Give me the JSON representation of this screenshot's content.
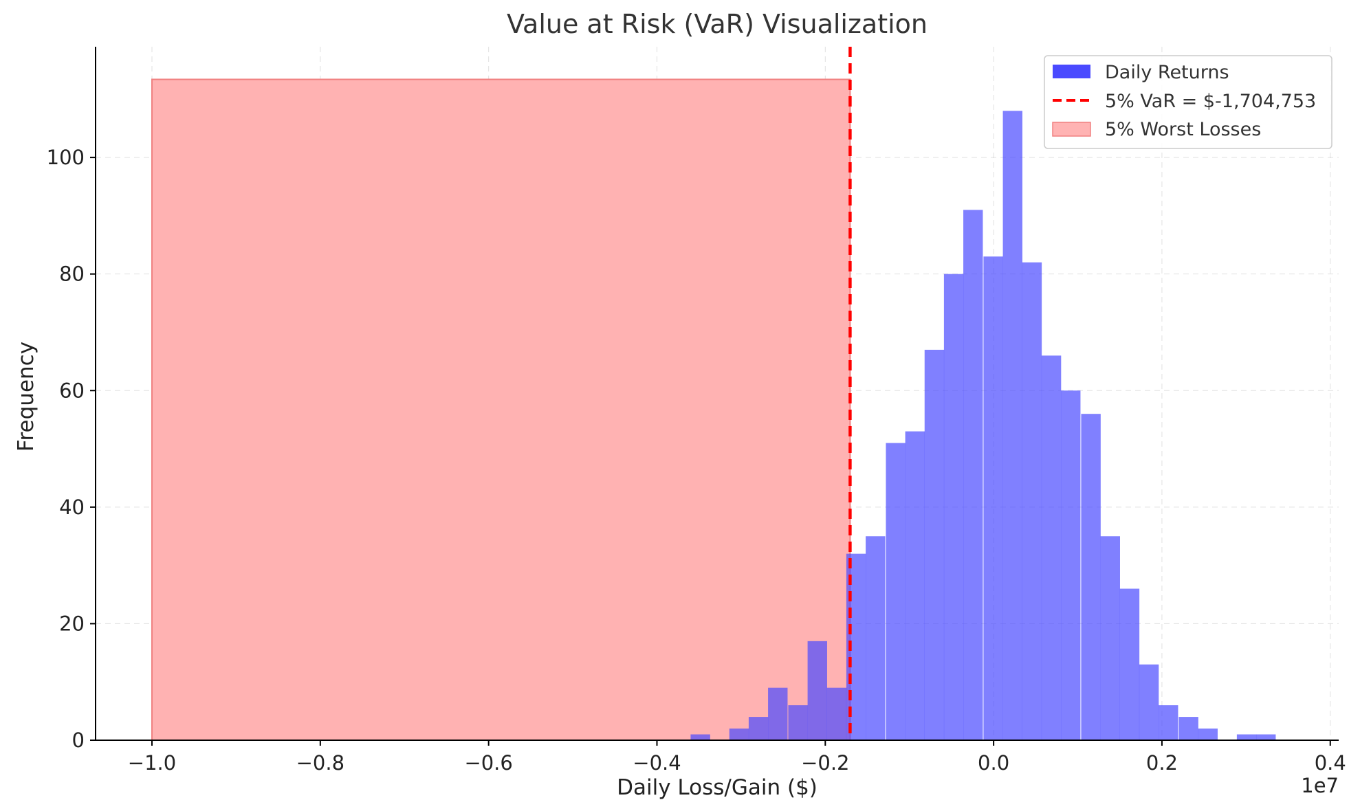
{
  "chart_data": {
    "type": "bar",
    "title": "Value at Risk (VaR) Visualization",
    "xlabel": "Daily Loss/Gain ($)",
    "ylabel": "Frequency",
    "x_offset_label": "1e7",
    "xlim": [
      -1.067,
      0.41
    ],
    "ylim": [
      0,
      119
    ],
    "x_ticks": [
      -1.0,
      -0.8,
      -0.6,
      -0.4,
      -0.2,
      0.0,
      0.2,
      0.4
    ],
    "x_tick_labels": [
      "−1.0",
      "−0.8",
      "−0.6",
      "−0.4",
      "−0.2",
      "0.0",
      "0.2",
      "0.4"
    ],
    "y_ticks": [
      0,
      20,
      40,
      60,
      80,
      100
    ],
    "y_tick_labels": [
      "0",
      "20",
      "40",
      "60",
      "80",
      "100"
    ],
    "grid": true,
    "legend_position": "top-right",
    "legend": [
      {
        "label": "Daily Returns",
        "kind": "patch",
        "color": "#4a4aff"
      },
      {
        "label": "5% VaR = $-1,704,753",
        "kind": "dashed-line",
        "color": "#ff0000"
      },
      {
        "label": "5% Worst Losses",
        "kind": "patch",
        "color": "#ffb3b3"
      }
    ],
    "colors": {
      "bars": "#4a4aff",
      "var_line": "#ff0000",
      "worst_losses_fill": "#ffb2b2",
      "worst_losses_edge": "#f08080"
    },
    "histogram": {
      "series_name": "Daily Returns",
      "bin_width": 0.0232,
      "bins": [
        {
          "x_start": -0.36,
          "value": 1
        },
        {
          "x_start": -0.337,
          "value": 0
        },
        {
          "x_start": -0.314,
          "value": 2
        },
        {
          "x_start": -0.291,
          "value": 4
        },
        {
          "x_start": -0.268,
          "value": 9
        },
        {
          "x_start": -0.244,
          "value": 6
        },
        {
          "x_start": -0.221,
          "value": 17
        },
        {
          "x_start": -0.198,
          "value": 9
        },
        {
          "x_start": -0.175,
          "value": 32
        },
        {
          "x_start": -0.152,
          "value": 35
        },
        {
          "x_start": -0.128,
          "value": 51
        },
        {
          "x_start": -0.105,
          "value": 53
        },
        {
          "x_start": -0.082,
          "value": 67
        },
        {
          "x_start": -0.059,
          "value": 80
        },
        {
          "x_start": -0.036,
          "value": 91
        },
        {
          "x_start": -0.012,
          "value": 83
        },
        {
          "x_start": 0.011,
          "value": 108
        },
        {
          "x_start": 0.034,
          "value": 82
        },
        {
          "x_start": 0.057,
          "value": 66
        },
        {
          "x_start": 0.08,
          "value": 60
        },
        {
          "x_start": 0.104,
          "value": 56
        },
        {
          "x_start": 0.127,
          "value": 35
        },
        {
          "x_start": 0.15,
          "value": 26
        },
        {
          "x_start": 0.173,
          "value": 13
        },
        {
          "x_start": 0.196,
          "value": 6
        },
        {
          "x_start": 0.22,
          "value": 4
        },
        {
          "x_start": 0.243,
          "value": 2
        },
        {
          "x_start": 0.266,
          "value": 0
        },
        {
          "x_start": 0.289,
          "value": 1
        },
        {
          "x_start": 0.312,
          "value": 1
        }
      ]
    },
    "var_line": {
      "label": "5% VaR = $-1,704,753",
      "x": -0.1705
    },
    "worst_losses_region": {
      "label": "5% Worst Losses",
      "x_start": -1.0,
      "x_end": -0.1705,
      "y_top": 113.4
    }
  }
}
